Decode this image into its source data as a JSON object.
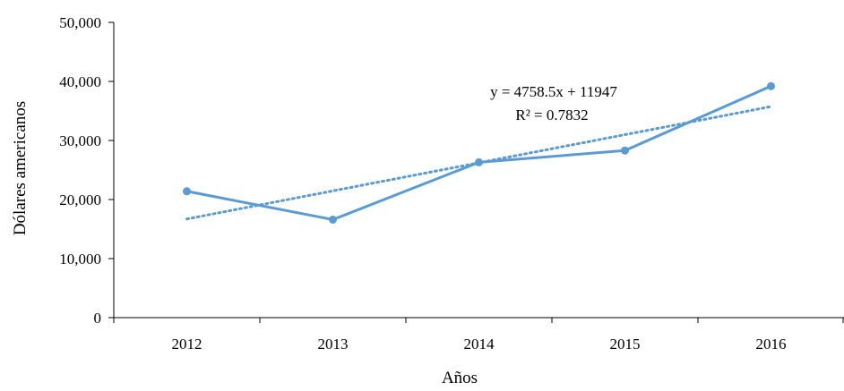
{
  "chart_data": {
    "type": "line",
    "title": "",
    "xlabel": "Años",
    "ylabel": "Dólares americanos",
    "categories": [
      "2012",
      "2013",
      "2014",
      "2015",
      "2016"
    ],
    "series": [
      {
        "values": [
          21400,
          16600,
          26300,
          28300,
          39200
        ]
      }
    ],
    "trendline": {
      "style": "dotted",
      "equation": "y = 4758.5x + 11947",
      "r_squared": "R² = 0.7832",
      "slope": 4758.5,
      "intercept": 11947
    },
    "ylim": [
      0,
      50000
    ],
    "yticks": [
      0,
      10000,
      20000,
      30000,
      40000,
      50000
    ],
    "ytick_labels": [
      "0",
      "10,000",
      "20,000",
      "30,000",
      "40,000",
      "50,000"
    ],
    "grid": false,
    "legend": "none",
    "colors": {
      "series": "#5b9bd5",
      "trend": "#5b9bd5",
      "axis": "#000000"
    }
  }
}
